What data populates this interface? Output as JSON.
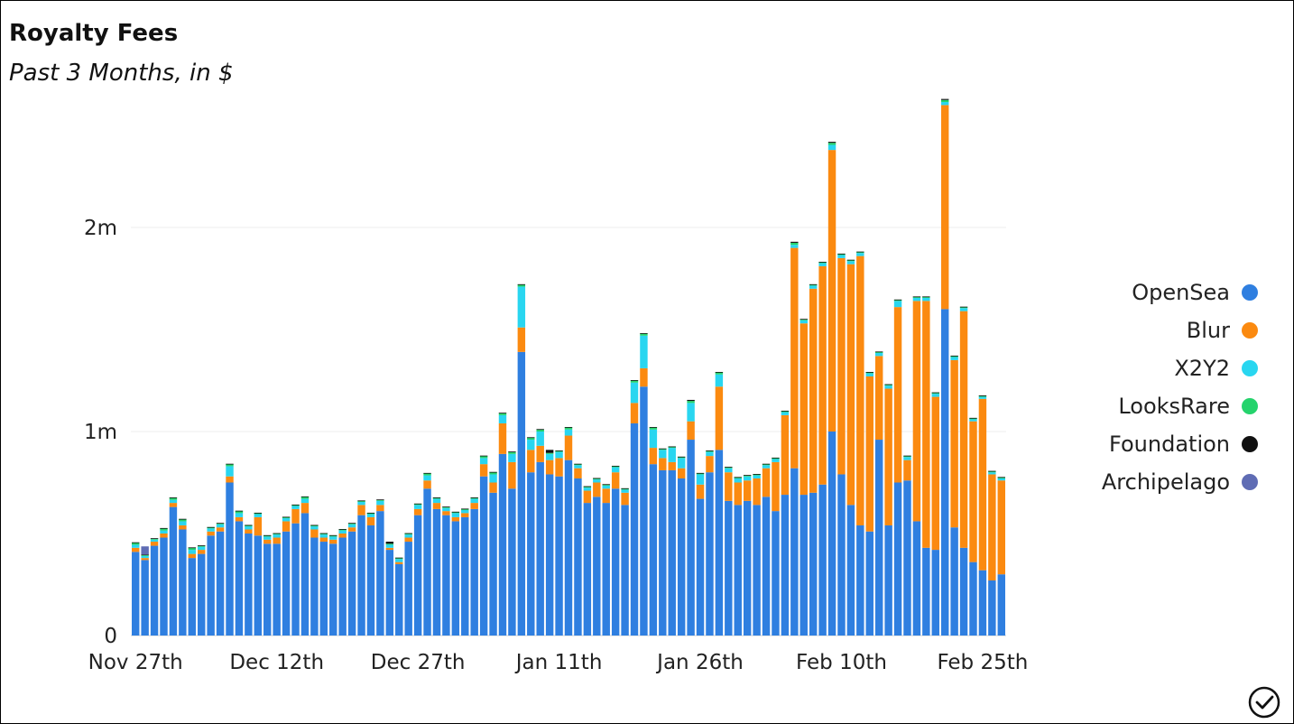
{
  "header": {
    "title": "Royalty Fees",
    "subtitle": "Past 3 Months, in $"
  },
  "chart_data": {
    "type": "bar",
    "stacked": true,
    "title": "Royalty Fees",
    "subtitle": "Past 3 Months, in $",
    "xlabel": "",
    "ylabel": "",
    "ylim": [
      0,
      2500000
    ],
    "y_ticks": [
      0,
      1000000,
      2000000
    ],
    "y_tick_labels": [
      "0",
      "1m",
      "2m"
    ],
    "x_tick_labels": [
      "Nov 27th",
      "Dec 12th",
      "Dec 27th",
      "Jan 11th",
      "Jan 26th",
      "Feb 10th",
      "Feb 25th"
    ],
    "x_tick_indices": [
      0,
      15,
      30,
      45,
      60,
      75,
      90
    ],
    "grid": true,
    "legend_position": "right",
    "colors": {
      "OpenSea": "#2f7fe0",
      "Blur": "#fb8a10",
      "X2Y2": "#29d6f0",
      "LooksRare": "#25d36c",
      "Foundation": "#111111",
      "Archipelago": "#5f6cb4"
    },
    "categories": [
      "Nov 27",
      "Nov 28",
      "Nov 29",
      "Nov 30",
      "Dec 1",
      "Dec 2",
      "Dec 3",
      "Dec 4",
      "Dec 5",
      "Dec 6",
      "Dec 7",
      "Dec 8",
      "Dec 9",
      "Dec 10",
      "Dec 11",
      "Dec 12",
      "Dec 13",
      "Dec 14",
      "Dec 15",
      "Dec 16",
      "Dec 17",
      "Dec 18",
      "Dec 19",
      "Dec 20",
      "Dec 21",
      "Dec 22",
      "Dec 23",
      "Dec 24",
      "Dec 25",
      "Dec 26",
      "Dec 27",
      "Dec 28",
      "Dec 29",
      "Dec 30",
      "Dec 31",
      "Jan 1",
      "Jan 2",
      "Jan 3",
      "Jan 4",
      "Jan 5",
      "Jan 6",
      "Jan 7",
      "Jan 8",
      "Jan 9",
      "Jan 10",
      "Jan 11",
      "Jan 12",
      "Jan 13",
      "Jan 14",
      "Jan 15",
      "Jan 16",
      "Jan 17",
      "Jan 18",
      "Jan 19",
      "Jan 20",
      "Jan 21",
      "Jan 22",
      "Jan 23",
      "Jan 24",
      "Jan 25",
      "Jan 26",
      "Jan 27",
      "Jan 28",
      "Jan 29",
      "Jan 30",
      "Jan 31",
      "Feb 1",
      "Feb 2",
      "Feb 3",
      "Feb 4",
      "Feb 5",
      "Feb 6",
      "Feb 7",
      "Feb 8",
      "Feb 9",
      "Feb 10",
      "Feb 11",
      "Feb 12",
      "Feb 13",
      "Feb 14",
      "Feb 15",
      "Feb 16",
      "Feb 17",
      "Feb 18",
      "Feb 19",
      "Feb 20",
      "Feb 21",
      "Feb 22",
      "Feb 23",
      "Feb 24",
      "Feb 25",
      "Feb 26",
      "Feb 27"
    ],
    "series": [
      {
        "name": "OpenSea",
        "values": [
          410000,
          370000,
          440000,
          480000,
          630000,
          520000,
          380000,
          400000,
          490000,
          510000,
          750000,
          560000,
          500000,
          490000,
          450000,
          450000,
          510000,
          550000,
          600000,
          480000,
          460000,
          450000,
          480000,
          510000,
          590000,
          540000,
          610000,
          420000,
          350000,
          460000,
          590000,
          720000,
          620000,
          590000,
          560000,
          580000,
          620000,
          780000,
          700000,
          890000,
          720000,
          1390000,
          800000,
          850000,
          790000,
          780000,
          860000,
          770000,
          650000,
          680000,
          650000,
          720000,
          640000,
          1040000,
          1220000,
          840000,
          810000,
          810000,
          770000,
          960000,
          670000,
          800000,
          910000,
          660000,
          640000,
          660000,
          640000,
          680000,
          610000,
          690000,
          820000,
          690000,
          700000,
          740000,
          1000000,
          790000,
          640000,
          540000,
          510000,
          960000,
          540000,
          750000,
          760000,
          560000,
          430000,
          420000,
          1600000,
          530000,
          430000,
          360000,
          320000,
          270000,
          300000
        ]
      },
      {
        "name": "Blur",
        "values": [
          20000,
          10000,
          20000,
          20000,
          20000,
          20000,
          20000,
          20000,
          20000,
          20000,
          30000,
          20000,
          20000,
          90000,
          20000,
          30000,
          50000,
          70000,
          50000,
          40000,
          20000,
          20000,
          20000,
          20000,
          50000,
          40000,
          30000,
          10000,
          10000,
          20000,
          30000,
          40000,
          30000,
          20000,
          20000,
          20000,
          30000,
          60000,
          50000,
          150000,
          130000,
          120000,
          110000,
          80000,
          70000,
          90000,
          120000,
          50000,
          60000,
          70000,
          70000,
          80000,
          60000,
          100000,
          90000,
          80000,
          60000,
          40000,
          50000,
          90000,
          70000,
          80000,
          310000,
          140000,
          110000,
          100000,
          130000,
          140000,
          240000,
          390000,
          1080000,
          840000,
          1000000,
          1070000,
          1380000,
          1060000,
          1180000,
          1320000,
          760000,
          410000,
          670000,
          860000,
          100000,
          1080000,
          1210000,
          750000,
          1000000,
          820000,
          1160000,
          690000,
          840000,
          520000,
          460000
        ]
      },
      {
        "name": "X2Y2",
        "values": [
          15000,
          10000,
          10000,
          15000,
          15000,
          20000,
          20000,
          15000,
          15000,
          15000,
          50000,
          20000,
          15000,
          15000,
          15000,
          15000,
          15000,
          15000,
          20000,
          15000,
          15000,
          15000,
          15000,
          15000,
          15000,
          15000,
          20000,
          15000,
          15000,
          15000,
          20000,
          25000,
          20000,
          15000,
          20000,
          15000,
          20000,
          30000,
          40000,
          40000,
          40000,
          200000,
          50000,
          70000,
          30000,
          30000,
          30000,
          15000,
          15000,
          15000,
          15000,
          25000,
          15000,
          100000,
          160000,
          90000,
          40000,
          70000,
          50000,
          90000,
          50000,
          20000,
          60000,
          20000,
          20000,
          20000,
          15000,
          15000,
          15000,
          15000,
          15000,
          15000,
          15000,
          15000,
          25000,
          15000,
          15000,
          15000,
          15000,
          15000,
          15000,
          30000,
          15000,
          15000,
          15000,
          15000,
          15000,
          15000,
          15000,
          10000,
          10000,
          10000,
          10000
        ]
      },
      {
        "name": "LooksRare",
        "values": [
          10000,
          5000,
          5000,
          10000,
          10000,
          10000,
          10000,
          5000,
          5000,
          5000,
          10000,
          10000,
          5000,
          5000,
          5000,
          5000,
          5000,
          5000,
          10000,
          5000,
          5000,
          5000,
          5000,
          5000,
          5000,
          5000,
          5000,
          5000,
          5000,
          5000,
          5000,
          10000,
          5000,
          5000,
          5000,
          5000,
          5000,
          10000,
          10000,
          10000,
          10000,
          10000,
          10000,
          10000,
          5000,
          5000,
          10000,
          5000,
          5000,
          5000,
          5000,
          5000,
          5000,
          10000,
          10000,
          10000,
          5000,
          5000,
          5000,
          10000,
          5000,
          5000,
          10000,
          5000,
          5000,
          5000,
          5000,
          5000,
          5000,
          5000,
          10000,
          5000,
          5000,
          5000,
          10000,
          5000,
          5000,
          5000,
          5000,
          5000,
          5000,
          5000,
          5000,
          5000,
          5000,
          5000,
          10000,
          5000,
          5000,
          5000,
          5000,
          5000,
          5000
        ]
      },
      {
        "name": "Foundation",
        "values": [
          2000,
          2000,
          2000,
          2000,
          2000,
          2000,
          2000,
          2000,
          2000,
          2000,
          2000,
          2000,
          2000,
          2000,
          2000,
          2000,
          2000,
          2000,
          2000,
          2000,
          2000,
          2000,
          2000,
          2000,
          2000,
          2000,
          2000,
          10000,
          2000,
          2000,
          2000,
          2000,
          2000,
          2000,
          2000,
          2000,
          2000,
          2000,
          2000,
          2000,
          2000,
          2000,
          2000,
          2000,
          15000,
          2000,
          2000,
          2000,
          2000,
          2000,
          2000,
          2000,
          2000,
          2000,
          2000,
          2000,
          2000,
          2000,
          2000,
          5000,
          2000,
          2000,
          2000,
          2000,
          2000,
          2000,
          2000,
          2000,
          2000,
          2000,
          5000,
          2000,
          2000,
          2000,
          5000,
          2000,
          2000,
          2000,
          2000,
          2000,
          2000,
          2000,
          2000,
          2000,
          2000,
          2000,
          5000,
          2000,
          2000,
          2000,
          2000,
          2000,
          2000
        ]
      },
      {
        "name": "Archipelago",
        "values": [
          0,
          40000,
          0,
          0,
          0,
          0,
          0,
          0,
          0,
          0,
          0,
          0,
          0,
          0,
          0,
          0,
          0,
          0,
          0,
          0,
          0,
          0,
          0,
          0,
          0,
          0,
          0,
          0,
          0,
          0,
          0,
          0,
          0,
          0,
          0,
          0,
          0,
          0,
          0,
          0,
          0,
          0,
          0,
          0,
          0,
          0,
          0,
          0,
          0,
          0,
          0,
          0,
          0,
          0,
          0,
          0,
          0,
          0,
          0,
          0,
          0,
          0,
          0,
          0,
          0,
          0,
          0,
          0,
          0,
          0,
          0,
          0,
          0,
          0,
          0,
          0,
          0,
          0,
          0,
          0,
          0,
          0,
          0,
          0,
          0,
          0,
          0,
          0,
          0,
          0,
          0,
          0,
          0
        ]
      }
    ]
  }
}
